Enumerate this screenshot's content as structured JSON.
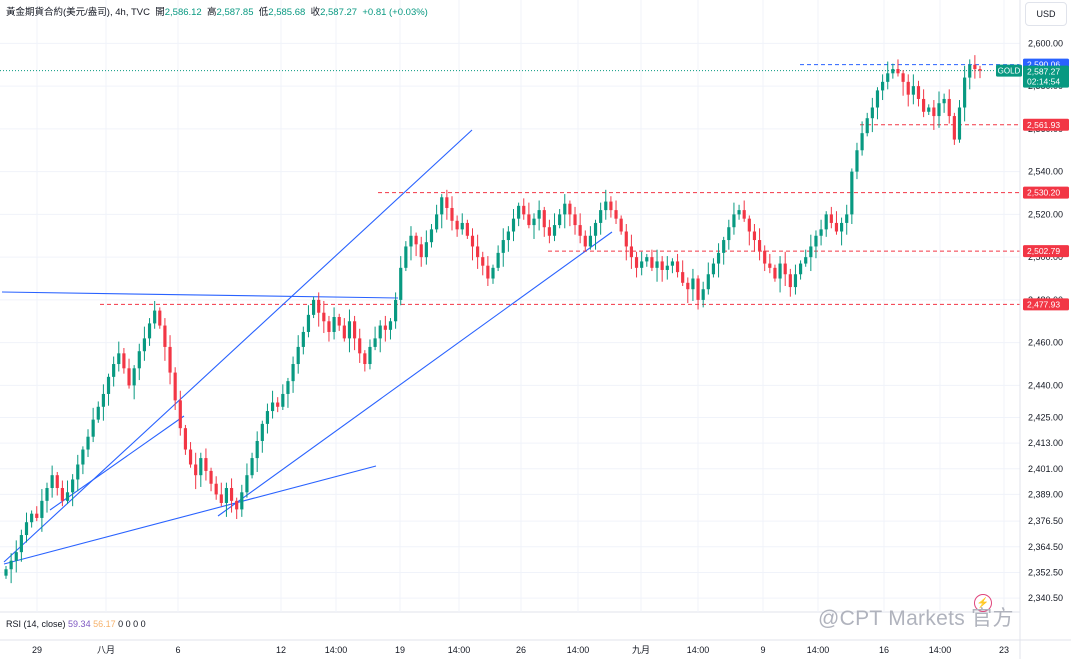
{
  "header": {
    "symbol": "黃金期貨合約(美元/盎司)",
    "timeframe": "4h",
    "source": "TVC",
    "open_label": "開",
    "open": "2,586.12",
    "high_label": "高",
    "high": "2,587.85",
    "low_label": "低",
    "low": "2,585.68",
    "close_label": "收",
    "close": "2,587.27",
    "change": "+0.81 (+0.03%)"
  },
  "currency_button": "USD",
  "rsi_legend": {
    "name": "RSI (14, close)",
    "value1": "59.34",
    "value2": "56.17",
    "placeholders": "0 0 0 0"
  },
  "watermark": "@CPT Markets 官方",
  "chart_data": {
    "type": "candlestick",
    "colors": {
      "up": "#089981",
      "down": "#f23645",
      "support_line": "#f23645",
      "trend_line": "#2962ff",
      "current_price_line": "#089981"
    },
    "x_labels": [
      "29",
      "八月",
      "6",
      "12",
      "14:00",
      "19",
      "14:00",
      "26",
      "14:00",
      "九月",
      "14:00",
      "9",
      "14:00",
      "16",
      "14:00",
      "23"
    ],
    "y_ticks": [
      "2,340.50",
      "2,352.50",
      "2,364.50",
      "2,376.50",
      "2,389.00",
      "2,401.00",
      "2,413.00",
      "2,425.00",
      "2,440.00",
      "2,460.00",
      "2,480.00",
      "2,500.00",
      "2,520.00",
      "2,540.00",
      "2,560.00",
      "2,580.00",
      "2,600.00"
    ],
    "ylim": [
      2334,
      2610
    ],
    "horizontal_levels": [
      {
        "value": 2590.06,
        "label": "2,590.06",
        "color": "#2962ff"
      },
      {
        "value": 2561.93,
        "label": "2,561.93",
        "color": "#f23645"
      },
      {
        "value": 2530.2,
        "label": "2,530.20",
        "color": "#f23645"
      },
      {
        "value": 2502.79,
        "label": "2,502.79",
        "color": "#f23645"
      },
      {
        "value": 2477.93,
        "label": "2,477.93",
        "color": "#f23645"
      }
    ],
    "last_price": {
      "symbol": "GOLD",
      "price": "2,587.27",
      "countdown": "02:14:54",
      "color": "#089981"
    },
    "close_path": [
      2354,
      2358,
      2362,
      2370,
      2376,
      2380,
      2378,
      2386,
      2392,
      2398,
      2392,
      2386,
      2390,
      2396,
      2403,
      2410,
      2416,
      2424,
      2430,
      2436,
      2444,
      2450,
      2455,
      2448,
      2440,
      2448,
      2456,
      2462,
      2469,
      2475,
      2468,
      2458,
      2446,
      2433,
      2420,
      2410,
      2403,
      2398,
      2406,
      2400,
      2394,
      2389,
      2385,
      2392,
      2386,
      2382,
      2390,
      2398,
      2406,
      2414,
      2422,
      2428,
      2432,
      2430,
      2436,
      2442,
      2450,
      2458,
      2465,
      2473,
      2480,
      2474,
      2470,
      2465,
      2472,
      2468,
      2462,
      2470,
      2462,
      2455,
      2450,
      2458,
      2462,
      2468,
      2466,
      2470,
      2480,
      2495,
      2505,
      2510,
      2506,
      2500,
      2507,
      2513,
      2520,
      2528,
      2523,
      2517,
      2513,
      2516,
      2510,
      2505,
      2500,
      2496,
      2490,
      2495,
      2502,
      2508,
      2512,
      2518,
      2524,
      2520,
      2515,
      2518,
      2522,
      2514,
      2510,
      2515,
      2520,
      2525,
      2520,
      2515,
      2510,
      2505,
      2510,
      2516,
      2522,
      2526,
      2522,
      2518,
      2512,
      2505,
      2500,
      2495,
      2498,
      2500,
      2495,
      2498,
      2494,
      2496,
      2498,
      2493,
      2488,
      2485,
      2490,
      2480,
      2485,
      2492,
      2497,
      2502,
      2508,
      2514,
      2520,
      2522,
      2518,
      2512,
      2508,
      2503,
      2497,
      2495,
      2490,
      2497,
      2492,
      2486,
      2492,
      2497,
      2500,
      2505,
      2510,
      2513,
      2520,
      2516,
      2512,
      2516,
      2520,
      2540,
      2550,
      2558,
      2565,
      2570,
      2578,
      2582,
      2586,
      2588,
      2586,
      2582,
      2576,
      2580,
      2574,
      2568,
      2570,
      2566,
      2572,
      2574,
      2566,
      2555,
      2570,
      2584,
      2590,
      2588,
      2587.27
    ]
  }
}
